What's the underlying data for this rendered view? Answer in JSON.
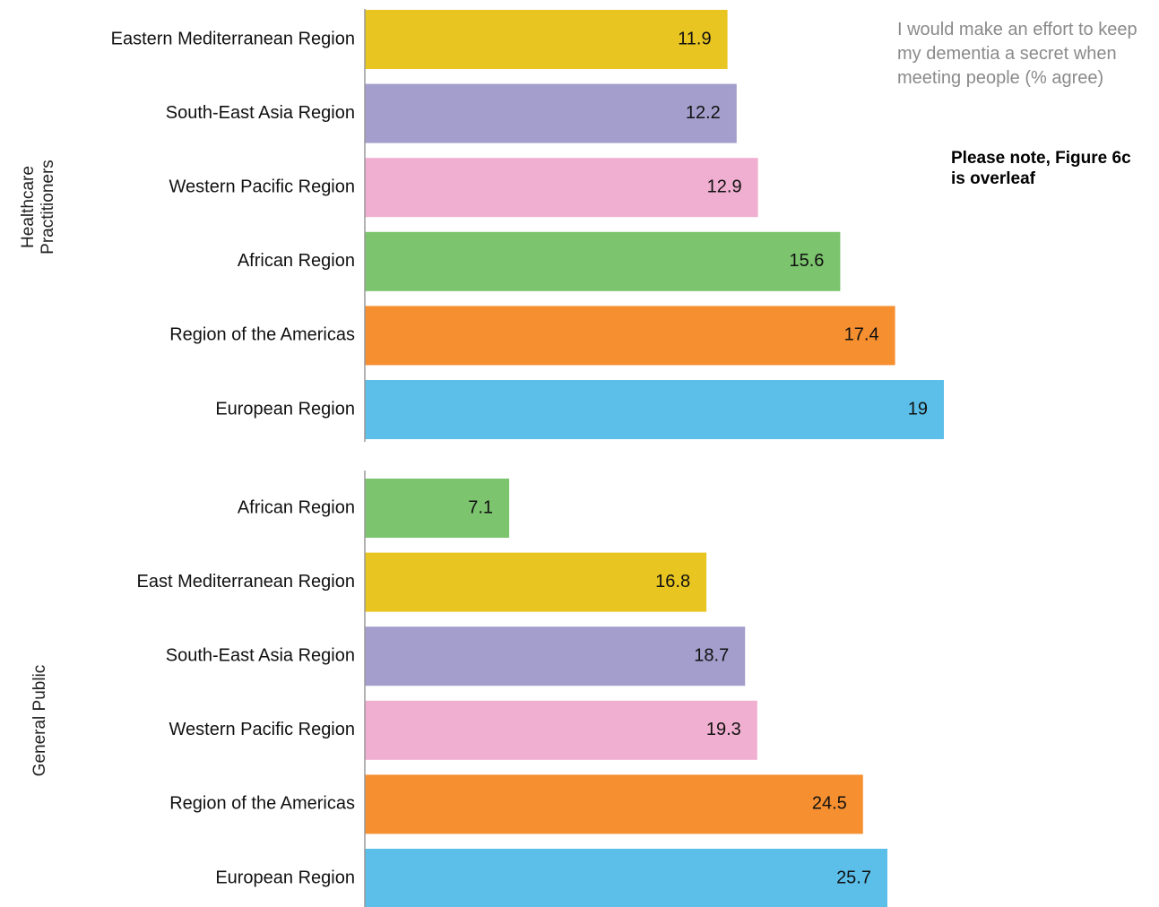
{
  "chart_data": [
    {
      "type": "bar",
      "orientation": "horizontal",
      "group_label": "Healthcare Practitioners",
      "categories": [
        "Eastern Mediterranean Region",
        "South-East Asia Region",
        "Western Pacific Region",
        "African Region",
        "Region of the Americas",
        "European Region"
      ],
      "values": [
        11.9,
        12.2,
        12.9,
        15.6,
        17.4,
        19
      ],
      "colors": [
        "#e8c520",
        "#a39ecc",
        "#f0afd0",
        "#7cc46e",
        "#f68f30",
        "#5bbfea"
      ]
    },
    {
      "type": "bar",
      "orientation": "horizontal",
      "group_label": "General Public",
      "categories": [
        "African Region",
        "East Mediterranean Region",
        "South-East Asia Region",
        "Western Pacific Region",
        "Region of the Americas",
        "European Region"
      ],
      "values": [
        7.1,
        16.8,
        18.7,
        19.3,
        24.5,
        25.7
      ],
      "colors": [
        "#7cc46e",
        "#e8c520",
        "#a39ecc",
        "#f0afd0",
        "#f68f30",
        "#5bbfea"
      ]
    }
  ],
  "annotations": {
    "question": "I would make an effort to keep my dementia a secret when meeting people (% agree)",
    "note": "Please note, Figure 6c is overleaf"
  }
}
